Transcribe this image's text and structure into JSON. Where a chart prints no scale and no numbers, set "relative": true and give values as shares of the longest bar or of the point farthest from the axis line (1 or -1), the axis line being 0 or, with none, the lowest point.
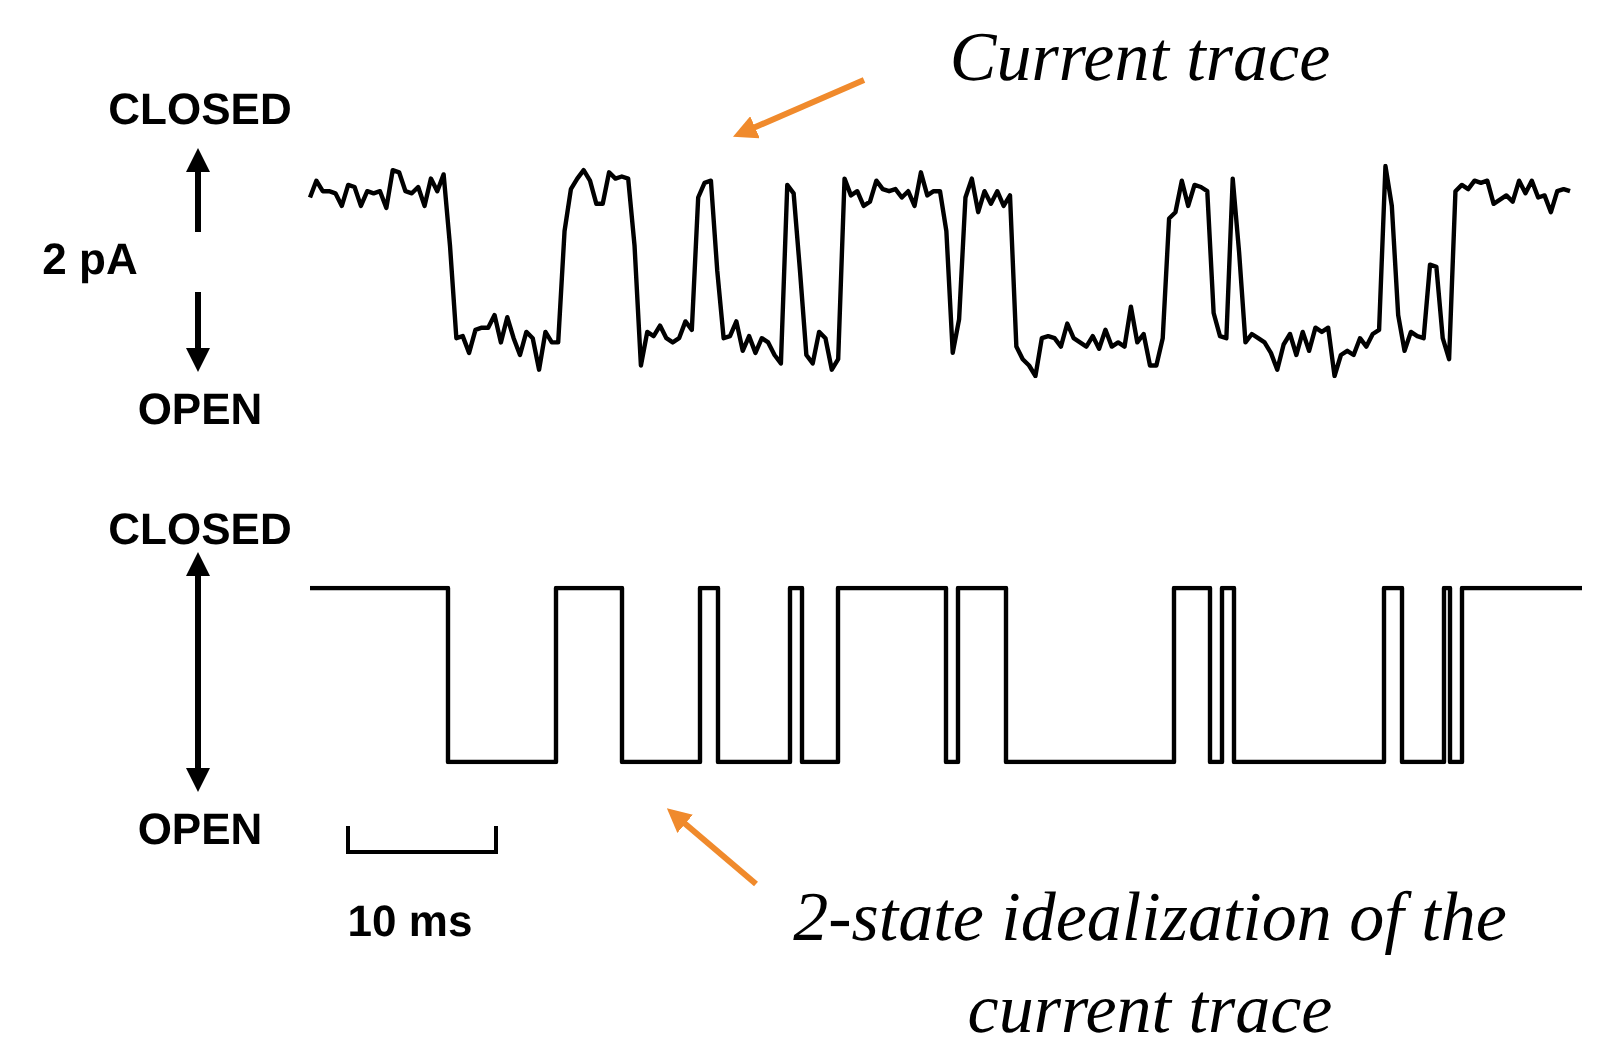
{
  "chart_data": [
    {
      "type": "line",
      "relative": true,
      "ylabel": "2 pA",
      "annotations": [
        "CLOSED",
        "OPEN",
        "Current trace"
      ],
      "categories": [
        null,
        null,
        null,
        null,
        null,
        null,
        null,
        null,
        null,
        null,
        null,
        null,
        null,
        null,
        null,
        null,
        null,
        null,
        null,
        null,
        null,
        null,
        null,
        null,
        null,
        null,
        null,
        null,
        null,
        null,
        null,
        null,
        null,
        null,
        null,
        null,
        null,
        null,
        null,
        null,
        null,
        null,
        null,
        null,
        null,
        null,
        null,
        null,
        null,
        null,
        null,
        null,
        null,
        null,
        null,
        null,
        null,
        null,
        null,
        null,
        null,
        null,
        null,
        null,
        null,
        null,
        null,
        null,
        null,
        null,
        null,
        null,
        null,
        null,
        null,
        null,
        null,
        null,
        null,
        null,
        null,
        null,
        null,
        null,
        null,
        null,
        null,
        null,
        null,
        null,
        null,
        null,
        null,
        null,
        null,
        null,
        null,
        null,
        null,
        null,
        null,
        null,
        null,
        null,
        null,
        null,
        null,
        null,
        null,
        null,
        null,
        null,
        null,
        null,
        null,
        null,
        null,
        null,
        null,
        null,
        null,
        null,
        null,
        null,
        null,
        null,
        null,
        null,
        null,
        null,
        null,
        null,
        null,
        null,
        null,
        null,
        null,
        null,
        null,
        null,
        null,
        null,
        null,
        null,
        null,
        null,
        null,
        null,
        null,
        null,
        null,
        null,
        null,
        null,
        null,
        null,
        null,
        null,
        null,
        null,
        null,
        null,
        null,
        null,
        null,
        null,
        null,
        null,
        null,
        null,
        null,
        null,
        null,
        null,
        null,
        null,
        null,
        null,
        null,
        null,
        null,
        null,
        null,
        null,
        null,
        null,
        null,
        null,
        null,
        null,
        null,
        null,
        null,
        null,
        null,
        null,
        null,
        null,
        null
      ],
      "series": [
        {
          "color": "#000000",
          "values": [
            0.85,
            0.93,
            0.88,
            0.88,
            0.87,
            0.81,
            0.91,
            0.9,
            0.81,
            0.88,
            0.87,
            0.88,
            0.8,
            0.98,
            0.97,
            0.88,
            0.87,
            0.9,
            0.81,
            0.94,
            0.88,
            0.96,
            0.62,
            0.18,
            0.19,
            0.11,
            0.22,
            0.23,
            0.23,
            0.29,
            0.16,
            0.28,
            0.18,
            0.1,
            0.21,
            0.18,
            0.03,
            0.21,
            0.16,
            0.16,
            0.69,
            0.89,
            0.94,
            0.98,
            0.93,
            0.82,
            0.82,
            0.97,
            0.94,
            0.95,
            0.94,
            0.62,
            0.05,
            0.21,
            0.19,
            0.24,
            0.18,
            0.16,
            0.18,
            0.26,
            0.22,
            0.85,
            0.92,
            0.93,
            0.5,
            0.18,
            0.19,
            0.26,
            0.12,
            0.19,
            0.11,
            0.18,
            0.16,
            0.1,
            0.06,
            0.91,
            0.87,
            0.5,
            0.1,
            0.06,
            0.21,
            0.18,
            0.03,
            0.08,
            0.94,
            0.86,
            0.88,
            0.81,
            0.83,
            0.93,
            0.89,
            0.88,
            0.89,
            0.85,
            0.88,
            0.81,
            0.97,
            0.86,
            0.88,
            0.88,
            0.69,
            0.11,
            0.27,
            0.85,
            0.94,
            0.78,
            0.88,
            0.82,
            0.88,
            0.81,
            0.86,
            0.14,
            0.08,
            0.05,
            0.0,
            0.18,
            0.19,
            0.18,
            0.14,
            0.25,
            0.18,
            0.16,
            0.14,
            0.19,
            0.13,
            0.22,
            0.14,
            0.16,
            0.14,
            0.33,
            0.16,
            0.2,
            0.05,
            0.05,
            0.18,
            0.75,
            0.78,
            0.93,
            0.81,
            0.91,
            0.9,
            0.88,
            0.3,
            0.19,
            0.18,
            0.94,
            0.59,
            0.16,
            0.2,
            0.18,
            0.16,
            0.11,
            0.03,
            0.15,
            0.2,
            0.1,
            0.21,
            0.12,
            0.23,
            0.21,
            0.23,
            0.0,
            0.1,
            0.12,
            0.1,
            0.18,
            0.14,
            0.2,
            0.22,
            1.0,
            0.81,
            0.29,
            0.12,
            0.21,
            0.19,
            0.18,
            0.53,
            0.52,
            0.18,
            0.08,
            0.88,
            0.91,
            0.89,
            0.93,
            0.92,
            0.93,
            0.82,
            0.84,
            0.86,
            0.83,
            0.93,
            0.87,
            0.93,
            0.85,
            0.86,
            0.78,
            0.88,
            0.89,
            0.88
          ]
        }
      ]
    },
    {
      "type": "step",
      "relative": true,
      "annotations": [
        "CLOSED",
        "OPEN",
        "10 ms",
        "2-state idealization of the current trace"
      ],
      "categories": [
        null,
        null,
        null,
        null,
        null,
        null,
        null,
        null,
        null,
        null,
        null,
        null,
        null,
        null,
        null,
        null,
        null,
        null,
        null,
        null,
        null,
        null,
        null,
        null,
        null,
        null,
        null,
        null,
        null,
        null,
        null,
        null,
        null,
        null,
        null,
        null,
        null,
        null,
        null,
        null,
        null,
        null,
        null,
        null,
        null,
        null,
        null,
        null,
        null,
        null,
        null,
        null,
        null,
        null,
        null,
        null,
        null,
        null,
        null,
        null,
        null,
        null,
        null,
        null,
        null,
        null,
        null,
        null,
        null,
        null,
        null,
        null,
        null,
        null,
        null,
        null,
        null,
        null,
        null,
        null,
        null,
        null,
        null,
        null,
        null,
        null,
        null,
        null,
        null,
        null,
        null,
        null,
        null,
        null,
        null,
        null,
        null,
        null,
        null,
        null,
        null,
        null,
        null,
        null,
        null,
        null,
        null,
        null,
        null,
        null,
        null,
        null,
        null,
        null,
        null,
        null,
        null,
        null,
        null,
        null,
        null,
        null,
        null,
        null,
        null,
        null,
        null,
        null,
        null,
        null,
        null,
        null,
        null,
        null,
        null,
        null,
        null,
        null,
        null,
        null,
        null,
        null,
        null,
        null,
        null,
        null,
        null,
        null,
        null,
        null,
        null,
        null,
        null,
        null,
        null,
        null,
        null,
        null,
        null,
        null,
        null,
        null,
        null,
        null,
        null,
        null,
        null,
        null,
        null,
        null,
        null,
        null,
        null,
        null,
        null,
        null,
        null,
        null,
        null,
        null,
        null,
        null,
        null,
        null,
        null,
        null,
        null,
        null,
        null,
        null,
        null,
        null,
        null,
        null,
        null,
        null,
        null,
        null,
        null,
        null,
        null,
        null,
        null,
        null,
        null,
        null,
        null,
        null,
        null,
        null,
        null,
        null,
        null
      ],
      "series": [
        {
          "color": "#000000",
          "values": [
            1,
            1,
            1,
            1,
            1,
            1,
            1,
            1,
            1,
            1,
            1,
            1,
            1,
            1,
            1,
            1,
            1,
            1,
            1,
            1,
            1,
            1,
            1,
            0,
            0,
            0,
            0,
            0,
            0,
            0,
            0,
            0,
            0,
            0,
            0,
            0,
            0,
            0,
            0,
            0,
            0,
            1,
            1,
            1,
            1,
            1,
            1,
            1,
            1,
            1,
            1,
            1,
            0,
            0,
            0,
            0,
            0,
            0,
            0,
            0,
            0,
            0,
            0,
            0,
            0,
            1,
            1,
            1,
            0,
            0,
            0,
            0,
            0,
            0,
            0,
            0,
            0,
            0,
            0,
            0,
            1,
            1,
            0,
            0,
            0,
            0,
            0,
            0,
            1,
            1,
            1,
            1,
            1,
            1,
            1,
            1,
            1,
            1,
            1,
            1,
            1,
            1,
            1,
            1,
            1,
            1,
            0,
            0,
            1,
            1,
            1,
            1,
            1,
            1,
            1,
            1,
            0,
            0,
            0,
            0,
            0,
            0,
            0,
            0,
            0,
            0,
            0,
            0,
            0,
            0,
            0,
            0,
            0,
            0,
            0,
            0,
            0,
            0,
            0,
            0,
            0,
            0,
            0,
            0,
            1,
            1,
            1,
            1,
            1,
            1,
            0,
            0,
            1,
            1,
            0,
            0,
            0,
            0,
            0,
            0,
            0,
            0,
            0,
            0,
            0,
            0,
            0,
            0,
            0,
            0,
            0,
            0,
            0,
            0,
            0,
            0,
            0,
            0,
            0,
            1,
            1,
            1,
            0,
            0,
            0,
            0,
            0,
            0,
            0,
            1,
            0,
            0,
            1,
            1,
            1,
            1,
            1,
            1,
            1,
            1,
            1,
            1,
            1,
            1,
            1,
            1,
            1,
            1,
            1,
            1,
            1,
            1,
            1
          ]
        }
      ]
    }
  ]
}
